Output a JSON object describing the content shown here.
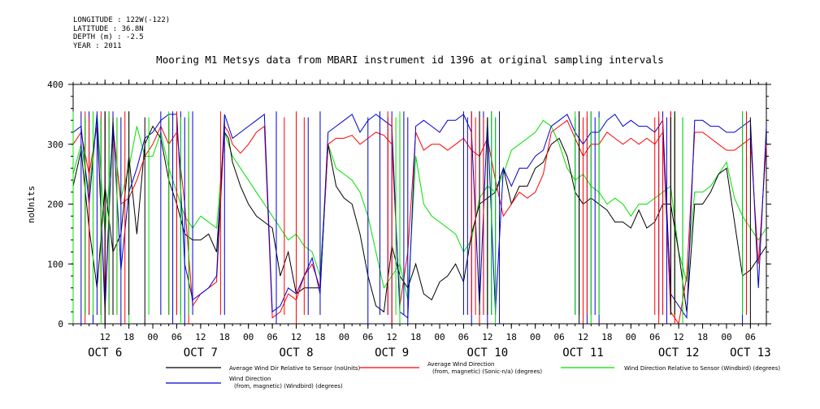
{
  "meta": {
    "longitude": "LONGITUDE : 122W(-122)",
    "latitude": "LATITUDE : 36.8N",
    "depth": "DEPTH (m) : -2.5",
    "year": "YEAR : 2011"
  },
  "chart_data": {
    "type": "line",
    "title": "Mooring M1 Metsys data from MBARI instrument id 1396 at original sampling intervals",
    "ylabel": "noUnits",
    "ylim": [
      0,
      400
    ],
    "yticks": [
      0,
      100,
      200,
      300,
      400
    ],
    "xlim": [
      4,
      178
    ],
    "x_unit": "hours since 00:00 Oct 6, 2011",
    "hour_ticks": [
      {
        "x": 12,
        "label": "12"
      },
      {
        "x": 18,
        "label": "18"
      },
      {
        "x": 24,
        "label": "00"
      },
      {
        "x": 30,
        "label": "06"
      },
      {
        "x": 36,
        "label": "12"
      },
      {
        "x": 42,
        "label": "18"
      },
      {
        "x": 48,
        "label": "00"
      },
      {
        "x": 54,
        "label": "06"
      },
      {
        "x": 60,
        "label": "12"
      },
      {
        "x": 66,
        "label": "18"
      },
      {
        "x": 72,
        "label": "00"
      },
      {
        "x": 78,
        "label": "06"
      },
      {
        "x": 84,
        "label": "12"
      },
      {
        "x": 90,
        "label": "18"
      },
      {
        "x": 96,
        "label": "00"
      },
      {
        "x": 102,
        "label": "06"
      },
      {
        "x": 108,
        "label": "12"
      },
      {
        "x": 114,
        "label": "18"
      },
      {
        "x": 120,
        "label": "00"
      },
      {
        "x": 126,
        "label": "06"
      },
      {
        "x": 132,
        "label": "12"
      },
      {
        "x": 138,
        "label": "18"
      },
      {
        "x": 144,
        "label": "00"
      },
      {
        "x": 150,
        "label": "06"
      },
      {
        "x": 156,
        "label": "12"
      },
      {
        "x": 162,
        "label": "18"
      },
      {
        "x": 168,
        "label": "00"
      },
      {
        "x": 174,
        "label": "06"
      }
    ],
    "day_labels": [
      {
        "x": 12,
        "label": "OCT  6"
      },
      {
        "x": 36,
        "label": "OCT  7"
      },
      {
        "x": 60,
        "label": "OCT  8"
      },
      {
        "x": 84,
        "label": "OCT  9"
      },
      {
        "x": 108,
        "label": "OCT 10"
      },
      {
        "x": 132,
        "label": "OCT 11"
      },
      {
        "x": 156,
        "label": "OCT 12"
      },
      {
        "x": 174,
        "label": "OCT 13"
      }
    ],
    "series": [
      {
        "name": "Average Wind Dir Relative to Sensor (noUnits)",
        "color": "#000000",
        "x": [
          4,
          6,
          8,
          10,
          12,
          14,
          16,
          18,
          20,
          22,
          24,
          26,
          28,
          30,
          32,
          34,
          36,
          38,
          40,
          42,
          43,
          44,
          46,
          48,
          50,
          52,
          54,
          56,
          58,
          60,
          62,
          64,
          66,
          68,
          70,
          72,
          74,
          76,
          78,
          80,
          82,
          84,
          86,
          88,
          90,
          92,
          94,
          96,
          98,
          100,
          102,
          104,
          106,
          108,
          110,
          112,
          114,
          116,
          118,
          120,
          122,
          124,
          126,
          128,
          130,
          132,
          134,
          136,
          138,
          140,
          142,
          144,
          146,
          148,
          150,
          152,
          154,
          156,
          158,
          160,
          162,
          164,
          166,
          168,
          170,
          172,
          174,
          176,
          178
        ],
        "y": [
          230,
          290,
          160,
          60,
          230,
          120,
          150,
          280,
          150,
          300,
          330,
          310,
          240,
          200,
          150,
          140,
          140,
          150,
          120,
          320,
          310,
          270,
          230,
          200,
          180,
          170,
          160,
          80,
          120,
          50,
          60,
          60,
          60,
          300,
          230,
          210,
          200,
          150,
          80,
          30,
          20,
          130,
          80,
          60,
          100,
          50,
          40,
          70,
          80,
          100,
          70,
          150,
          200,
          210,
          220,
          260,
          200,
          230,
          230,
          260,
          270,
          300,
          310,
          280,
          220,
          200,
          210,
          200,
          190,
          170,
          170,
          160,
          190,
          160,
          170,
          200,
          200,
          120,
          20,
          200,
          200,
          220,
          250,
          260,
          170,
          80,
          90,
          110,
          130
        ]
      },
      {
        "name": "Average Wind Direction (from, magnetic) (Sonic-n/a) (degrees)",
        "color": "#ff0000",
        "x": [
          4,
          6,
          8,
          10,
          12,
          14,
          16,
          18,
          20,
          22,
          24,
          26,
          28,
          30,
          32,
          34,
          36,
          38,
          40,
          42,
          43,
          44,
          46,
          48,
          50,
          52,
          54,
          56,
          58,
          60,
          62,
          64,
          66,
          68,
          70,
          72,
          74,
          76,
          78,
          80,
          82,
          84,
          86,
          88,
          90,
          92,
          94,
          96,
          98,
          100,
          102,
          104,
          106,
          108,
          110,
          112,
          114,
          116,
          118,
          120,
          122,
          124,
          126,
          128,
          130,
          132,
          134,
          136,
          138,
          140,
          142,
          144,
          146,
          148,
          150,
          152,
          154,
          156,
          158,
          160,
          162,
          164,
          166,
          168,
          170,
          172,
          174,
          176,
          178
        ],
        "y": [
          300,
          320,
          250,
          330,
          40,
          330,
          200,
          210,
          240,
          280,
          300,
          330,
          300,
          320,
          200,
          30,
          50,
          60,
          70,
          330,
          320,
          300,
          285,
          300,
          320,
          330,
          10,
          20,
          50,
          40,
          80,
          100,
          60,
          300,
          310,
          310,
          315,
          300,
          310,
          320,
          315,
          300,
          30,
          120,
          320,
          290,
          300,
          300,
          290,
          300,
          310,
          290,
          280,
          310,
          240,
          180,
          200,
          220,
          210,
          220,
          250,
          320,
          330,
          340,
          310,
          280,
          300,
          300,
          320,
          310,
          300,
          310,
          300,
          310,
          300,
          320,
          20,
          0,
          80,
          320,
          320,
          310,
          300,
          290,
          290,
          300,
          310,
          100,
          300
        ]
      },
      {
        "name": "Wind Direction Relative to Sensor (Windbird) (degrees)",
        "color": "#00e000",
        "x": [
          4,
          6,
          8,
          10,
          12,
          14,
          16,
          18,
          20,
          22,
          24,
          26,
          28,
          30,
          32,
          34,
          36,
          38,
          40,
          42,
          43,
          44,
          46,
          48,
          50,
          52,
          54,
          56,
          58,
          60,
          62,
          64,
          66,
          68,
          70,
          72,
          74,
          76,
          78,
          80,
          82,
          84,
          86,
          88,
          90,
          92,
          94,
          96,
          98,
          100,
          102,
          104,
          106,
          108,
          110,
          112,
          114,
          116,
          118,
          120,
          122,
          124,
          126,
          128,
          130,
          132,
          134,
          136,
          138,
          140,
          142,
          144,
          146,
          148,
          150,
          152,
          154,
          156,
          158,
          160,
          162,
          164,
          166,
          168,
          170,
          172,
          174,
          176,
          178
        ],
        "y": [
          250,
          300,
          220,
          350,
          150,
          320,
          210,
          260,
          330,
          280,
          280,
          320,
          260,
          220,
          180,
          160,
          180,
          170,
          160,
          320,
          300,
          280,
          260,
          240,
          220,
          200,
          180,
          160,
          140,
          150,
          130,
          120,
          80,
          300,
          260,
          250,
          240,
          220,
          180,
          120,
          60,
          80,
          100,
          40,
          280,
          200,
          180,
          170,
          160,
          150,
          120,
          140,
          210,
          230,
          220,
          250,
          290,
          300,
          310,
          320,
          340,
          330,
          300,
          260,
          240,
          250,
          230,
          220,
          200,
          210,
          200,
          180,
          200,
          200,
          210,
          220,
          230,
          120,
          70,
          220,
          220,
          230,
          250,
          270,
          210,
          180,
          160,
          140,
          160
        ]
      },
      {
        "name": "Wind Direction (from, magnetic) (Windbird) (degrees)",
        "color": "#0000d0",
        "x": [
          4,
          6,
          8,
          10,
          12,
          14,
          16,
          18,
          20,
          22,
          24,
          26,
          28,
          30,
          32,
          34,
          36,
          38,
          40,
          42,
          43,
          44,
          46,
          48,
          50,
          52,
          54,
          56,
          58,
          60,
          62,
          64,
          66,
          68,
          70,
          72,
          74,
          76,
          78,
          80,
          82,
          84,
          86,
          88,
          90,
          92,
          94,
          96,
          98,
          100,
          102,
          104,
          106,
          108,
          110,
          112,
          114,
          116,
          118,
          120,
          122,
          124,
          126,
          128,
          130,
          132,
          134,
          136,
          138,
          140,
          142,
          144,
          146,
          148,
          150,
          152,
          154,
          156,
          158,
          160,
          162,
          164,
          166,
          168,
          170,
          172,
          174,
          176,
          178
        ],
        "y": [
          320,
          330,
          200,
          350,
          20,
          340,
          90,
          220,
          260,
          310,
          320,
          340,
          350,
          350,
          100,
          40,
          50,
          60,
          80,
          350,
          330,
          310,
          320,
          330,
          340,
          350,
          20,
          30,
          60,
          50,
          80,
          110,
          50,
          320,
          330,
          340,
          350,
          320,
          340,
          350,
          340,
          330,
          20,
          10,
          330,
          340,
          330,
          320,
          340,
          340,
          350,
          320,
          30,
          340,
          20,
          260,
          230,
          260,
          260,
          280,
          290,
          330,
          340,
          350,
          320,
          300,
          320,
          320,
          340,
          350,
          330,
          340,
          330,
          330,
          320,
          340,
          50,
          30,
          10,
          340,
          340,
          330,
          330,
          320,
          320,
          330,
          340,
          60,
          330
        ]
      }
    ],
    "spikes": [
      {
        "series": 3,
        "x": [
          6,
          7,
          8,
          9,
          10,
          11,
          12,
          13,
          14,
          16,
          26,
          28,
          29,
          30,
          31,
          32,
          34,
          42,
          55,
          63,
          66,
          78,
          81,
          83,
          84,
          86,
          87,
          88,
          102,
          103,
          104,
          106,
          107,
          108,
          109,
          110,
          111,
          130,
          131,
          133,
          134,
          135,
          136,
          151,
          152,
          153,
          154,
          157,
          172,
          173
        ]
      },
      {
        "series": 1,
        "x": [
          7,
          8,
          11,
          12,
          13,
          15,
          17,
          28,
          30,
          33,
          41,
          57,
          60,
          62,
          83,
          84,
          104,
          105,
          106,
          107,
          131,
          132,
          133,
          150,
          151,
          152,
          154,
          155,
          173
        ]
      },
      {
        "series": 2,
        "x": [
          4,
          7,
          9,
          11,
          13,
          15,
          18,
          23,
          28,
          31,
          33,
          85,
          86,
          108,
          109,
          110,
          130,
          131,
          134,
          136,
          155,
          157,
          172
        ]
      },
      {
        "series": 0,
        "x": [
          12,
          14,
          18,
          22,
          106,
          108,
          131,
          154,
          155,
          174
        ]
      }
    ]
  },
  "legend": [
    {
      "label": "Average Wind Dir Relative to Sensor (noUnits)",
      "color": "#000000"
    },
    {
      "label": "Average Wind Direction (from, magnetic) (Sonic-n/a) (degrees)",
      "color": "#ff0000"
    },
    {
      "label": "Wind Direction Relative to Sensor (Windbird) (degrees)",
      "color": "#00e000"
    },
    {
      "label": "Wind Direction (from, magnetic) (Windbird) (degrees)",
      "color": "#0000d0"
    }
  ]
}
